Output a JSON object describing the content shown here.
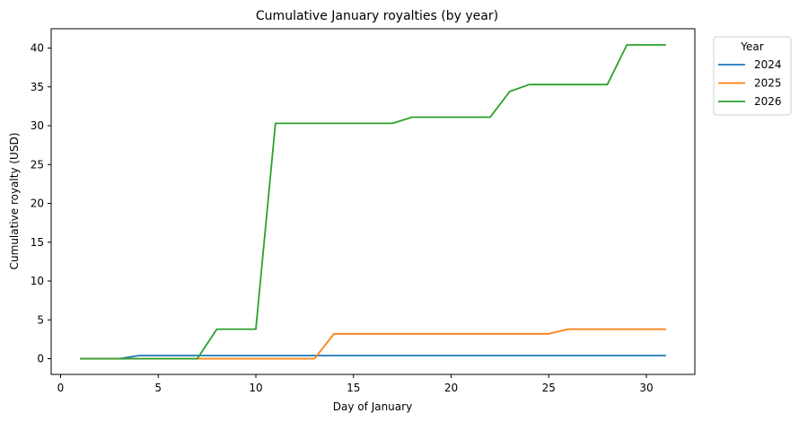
{
  "chart_data": {
    "type": "line",
    "title": "Cumulative January royalties (by year)",
    "xlabel": "Day of January",
    "ylabel": "Cumulative royalty (USD)",
    "xlim": [
      -0.5,
      32.5
    ],
    "ylim": [
      -2.0,
      42.4
    ],
    "xticks": [
      0,
      5,
      10,
      15,
      20,
      25,
      30
    ],
    "yticks": [
      0,
      5,
      10,
      15,
      20,
      25,
      30,
      35,
      40
    ],
    "grid": false,
    "legend": {
      "title": "Year",
      "position": "upper right outside"
    },
    "x": [
      1,
      2,
      3,
      4,
      5,
      6,
      7,
      8,
      9,
      10,
      11,
      12,
      13,
      14,
      15,
      16,
      17,
      18,
      19,
      20,
      21,
      22,
      23,
      24,
      25,
      26,
      27,
      28,
      29,
      30,
      31
    ],
    "series": [
      {
        "name": "2024",
        "color": "#1f77b4",
        "values": [
          0,
          0,
          0,
          0.4,
          0.4,
          0.4,
          0.4,
          0.4,
          0.4,
          0.4,
          0.4,
          0.4,
          0.4,
          0.4,
          0.4,
          0.4,
          0.4,
          0.4,
          0.4,
          0.4,
          0.4,
          0.4,
          0.4,
          0.4,
          0.4,
          0.4,
          0.4,
          0.4,
          0.4,
          0.4,
          0.4
        ]
      },
      {
        "name": "2025",
        "color": "#ff7f0e",
        "values": [
          0,
          0,
          0,
          0,
          0,
          0,
          0,
          0,
          0,
          0,
          0,
          0,
          0,
          3.2,
          3.2,
          3.2,
          3.2,
          3.2,
          3.2,
          3.2,
          3.2,
          3.2,
          3.2,
          3.2,
          3.2,
          3.8,
          3.8,
          3.8,
          3.8,
          3.8,
          3.8
        ]
      },
      {
        "name": "2026",
        "color": "#2ca02c",
        "values": [
          0,
          0,
          0,
          0,
          0,
          0,
          0,
          3.8,
          3.8,
          3.8,
          30.3,
          30.3,
          30.3,
          30.3,
          30.3,
          30.3,
          30.3,
          31.1,
          31.1,
          31.1,
          31.1,
          31.1,
          34.4,
          35.3,
          35.3,
          35.3,
          35.3,
          35.3,
          40.4,
          40.4,
          40.4
        ]
      }
    ]
  }
}
